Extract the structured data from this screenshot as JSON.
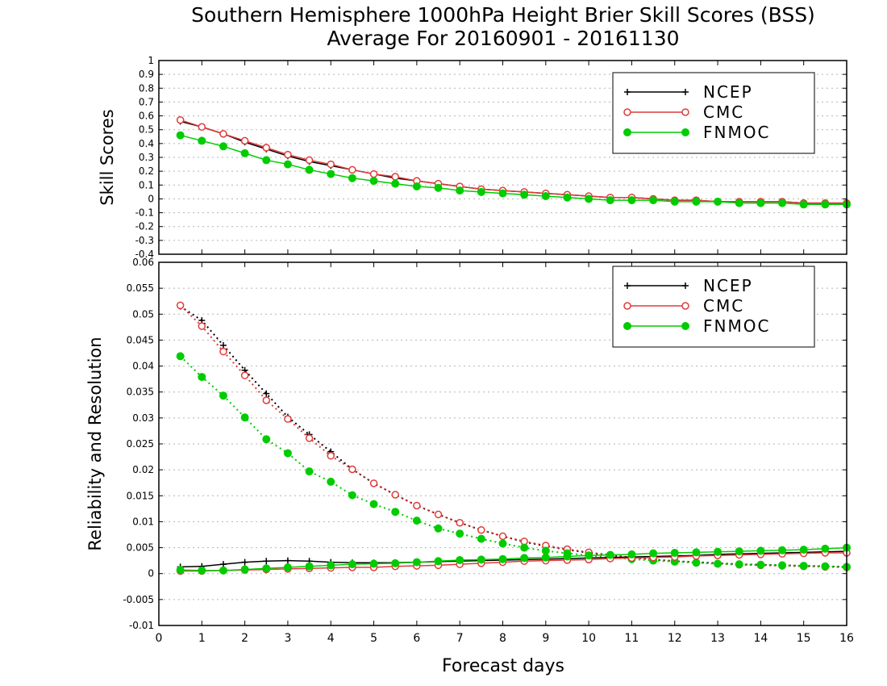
{
  "chart_data": [
    {
      "type": "line",
      "title": "Southern Hemisphere 1000hPa Height Brier Skill Scores (BSS)",
      "subtitle": "Average For 20160901 - 20161130",
      "ylabel": "Skill Scores",
      "xlabel": "",
      "xlim": [
        0,
        16
      ],
      "ylim": [
        -0.4,
        1
      ],
      "yticks": [
        "1",
        "0.9",
        "0.8",
        "0.7",
        "0.6",
        "0.5",
        "0.4",
        "0.3",
        "0.2",
        "0.1",
        "0",
        "-0.1",
        "-0.2",
        "-0.3",
        "-0.4"
      ],
      "grid": true,
      "legend_position": "top-right",
      "x": [
        0.5,
        1,
        1.5,
        2,
        2.5,
        3,
        3.5,
        4,
        4.5,
        5,
        5.5,
        6,
        6.5,
        7,
        7.5,
        8,
        8.5,
        9,
        9.5,
        10,
        10.5,
        11,
        11.5,
        12,
        12.5,
        13,
        13.5,
        14,
        14.5,
        15,
        15.5,
        16
      ],
      "series": [
        {
          "name": "NCEP",
          "color": "#000000",
          "marker": "plus",
          "values": [
            0.56,
            0.52,
            0.47,
            0.41,
            0.36,
            0.31,
            0.27,
            0.24,
            0.21,
            0.18,
            0.15,
            0.13,
            0.11,
            0.09,
            0.07,
            0.06,
            0.05,
            0.04,
            0.03,
            0.02,
            0.01,
            0.01,
            0.0,
            -0.01,
            -0.01,
            -0.02,
            -0.02,
            -0.02,
            -0.02,
            -0.03,
            -0.03,
            -0.03
          ]
        },
        {
          "name": "CMC",
          "color": "#e03a3a",
          "marker": "open-circle",
          "values": [
            0.57,
            0.52,
            0.47,
            0.42,
            0.37,
            0.32,
            0.28,
            0.25,
            0.21,
            0.18,
            0.16,
            0.13,
            0.11,
            0.09,
            0.07,
            0.06,
            0.05,
            0.04,
            0.03,
            0.02,
            0.01,
            0.01,
            0.0,
            -0.01,
            -0.01,
            -0.02,
            -0.02,
            -0.02,
            -0.02,
            -0.03,
            -0.03,
            -0.03
          ]
        },
        {
          "name": "FNMOC",
          "color": "#00cc00",
          "marker": "filled-circle",
          "values": [
            0.46,
            0.42,
            0.38,
            0.33,
            0.28,
            0.25,
            0.21,
            0.18,
            0.15,
            0.13,
            0.11,
            0.09,
            0.08,
            0.06,
            0.05,
            0.04,
            0.03,
            0.02,
            0.01,
            0.0,
            -0.01,
            -0.01,
            -0.01,
            -0.02,
            -0.02,
            -0.02,
            -0.03,
            -0.03,
            -0.03,
            -0.04,
            -0.04,
            -0.04
          ]
        }
      ]
    },
    {
      "type": "line",
      "ylabel": "Reliability and Resolution",
      "xlabel": "Forecast days",
      "xlim": [
        0,
        16
      ],
      "ylim": [
        -0.01,
        0.06
      ],
      "yticks": [
        "0.06",
        "0.055",
        "0.05",
        "0.045",
        "0.04",
        "0.035",
        "0.03",
        "0.025",
        "0.02",
        "0.015",
        "0.01",
        "0.005",
        "0",
        "-0.005",
        "-0.01"
      ],
      "xticks": [
        "0",
        "1",
        "2",
        "3",
        "4",
        "5",
        "6",
        "7",
        "8",
        "9",
        "10",
        "11",
        "12",
        "13",
        "14",
        "15",
        "16"
      ],
      "grid": true,
      "legend_position": "top-right",
      "x": [
        0.5,
        1,
        1.5,
        2,
        2.5,
        3,
        3.5,
        4,
        4.5,
        5,
        5.5,
        6,
        6.5,
        7,
        7.5,
        8,
        8.5,
        9,
        9.5,
        10,
        10.5,
        11,
        11.5,
        12,
        12.5,
        13,
        13.5,
        14,
        14.5,
        15,
        15.5,
        16
      ],
      "series": [
        {
          "name": "NCEP",
          "color": "#000000",
          "marker": "plus",
          "role": "resolution",
          "line": "dotted",
          "values": [
            0.0515,
            0.0488,
            0.044,
            0.0392,
            0.0347,
            0.0302,
            0.0268,
            0.0235,
            0.0201,
            0.0174,
            0.0152,
            0.0131,
            0.0114,
            0.0098,
            0.0084,
            0.0072,
            0.0061,
            0.0053,
            0.0046,
            0.004,
            0.0035,
            0.0031,
            0.0027,
            0.0024,
            0.0022,
            0.002,
            0.0018,
            0.0017,
            0.0016,
            0.0015,
            0.0014,
            0.0013
          ]
        },
        {
          "name": "CMC",
          "color": "#e03a3a",
          "marker": "open-circle",
          "role": "resolution",
          "line": "dotted",
          "values": [
            0.0517,
            0.0477,
            0.0428,
            0.0382,
            0.0334,
            0.0298,
            0.0261,
            0.0227,
            0.0201,
            0.0174,
            0.0152,
            0.0131,
            0.0114,
            0.0098,
            0.0084,
            0.0072,
            0.0062,
            0.0054,
            0.0047,
            0.0041,
            0.0036,
            0.0031,
            0.0027,
            0.0024,
            0.0021,
            0.0019,
            0.0017,
            0.0016,
            0.0015,
            0.0014,
            0.0013,
            0.0012
          ]
        },
        {
          "name": "FNMOC",
          "color": "#00cc00",
          "marker": "filled-circle",
          "role": "resolution",
          "line": "dotted",
          "values": [
            0.0419,
            0.0379,
            0.0343,
            0.0301,
            0.0259,
            0.0232,
            0.0197,
            0.0177,
            0.0151,
            0.0134,
            0.0119,
            0.0102,
            0.0087,
            0.0077,
            0.0067,
            0.0058,
            0.005,
            0.0044,
            0.0039,
            0.0035,
            0.0031,
            0.0028,
            0.0025,
            0.0023,
            0.0021,
            0.0019,
            0.0018,
            0.0017,
            0.0016,
            0.0015,
            0.0014,
            0.0013
          ]
        },
        {
          "name": "NCEP",
          "color": "#000000",
          "marker": "plus",
          "role": "reliability",
          "line": "solid",
          "values": [
            0.0013,
            0.0014,
            0.0018,
            0.0022,
            0.0024,
            0.0025,
            0.0024,
            0.0022,
            0.0021,
            0.0021,
            0.0021,
            0.0022,
            0.0023,
            0.0024,
            0.0025,
            0.0026,
            0.0027,
            0.0028,
            0.0029,
            0.003,
            0.0031,
            0.0032,
            0.0033,
            0.0034,
            0.0035,
            0.0037,
            0.0038,
            0.0039,
            0.004,
            0.0041,
            0.0042,
            0.0043
          ]
        },
        {
          "name": "CMC",
          "color": "#e03a3a",
          "marker": "open-circle",
          "role": "reliability",
          "line": "solid",
          "values": [
            0.0005,
            0.0005,
            0.0006,
            0.0007,
            0.0008,
            0.0009,
            0.001,
            0.0011,
            0.0012,
            0.0012,
            0.0014,
            0.0015,
            0.0016,
            0.0018,
            0.002,
            0.0022,
            0.0024,
            0.0025,
            0.0026,
            0.0027,
            0.0029,
            0.003,
            0.0031,
            0.0032,
            0.0034,
            0.0035,
            0.0036,
            0.0037,
            0.0038,
            0.0039,
            0.004,
            0.004
          ]
        },
        {
          "name": "FNMOC",
          "color": "#00cc00",
          "marker": "filled-circle",
          "role": "reliability",
          "line": "solid",
          "values": [
            0.0007,
            0.0006,
            0.0006,
            0.0008,
            0.001,
            0.0012,
            0.0014,
            0.0016,
            0.0018,
            0.0019,
            0.002,
            0.0022,
            0.0024,
            0.0026,
            0.0027,
            0.0028,
            0.003,
            0.0031,
            0.0033,
            0.0035,
            0.0036,
            0.0037,
            0.0039,
            0.004,
            0.0041,
            0.0042,
            0.0043,
            0.0044,
            0.0045,
            0.0046,
            0.0048,
            0.005
          ]
        }
      ]
    }
  ]
}
